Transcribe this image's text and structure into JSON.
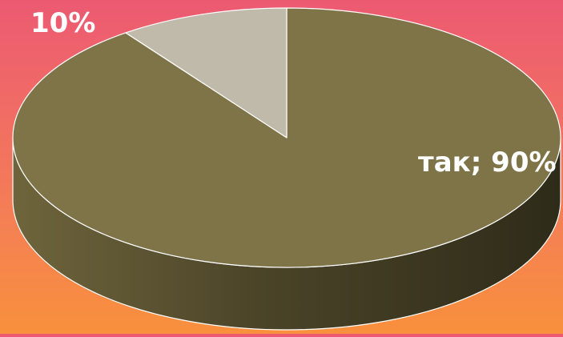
{
  "chart_data": {
    "type": "pie",
    "style": "3d",
    "slices": [
      {
        "label": "так",
        "value": 90,
        "data_label": "так; 90%",
        "color": "#7f7448"
      },
      {
        "label": "",
        "value": 10,
        "data_label": "10%",
        "color": "#bfbaa9"
      }
    ]
  },
  "colors": {
    "edge": "#ffffff",
    "side_dark": "#2e2b19",
    "side_mid": "#4b4428",
    "side_light": "#6e653c",
    "label_text": "#ffffff"
  }
}
